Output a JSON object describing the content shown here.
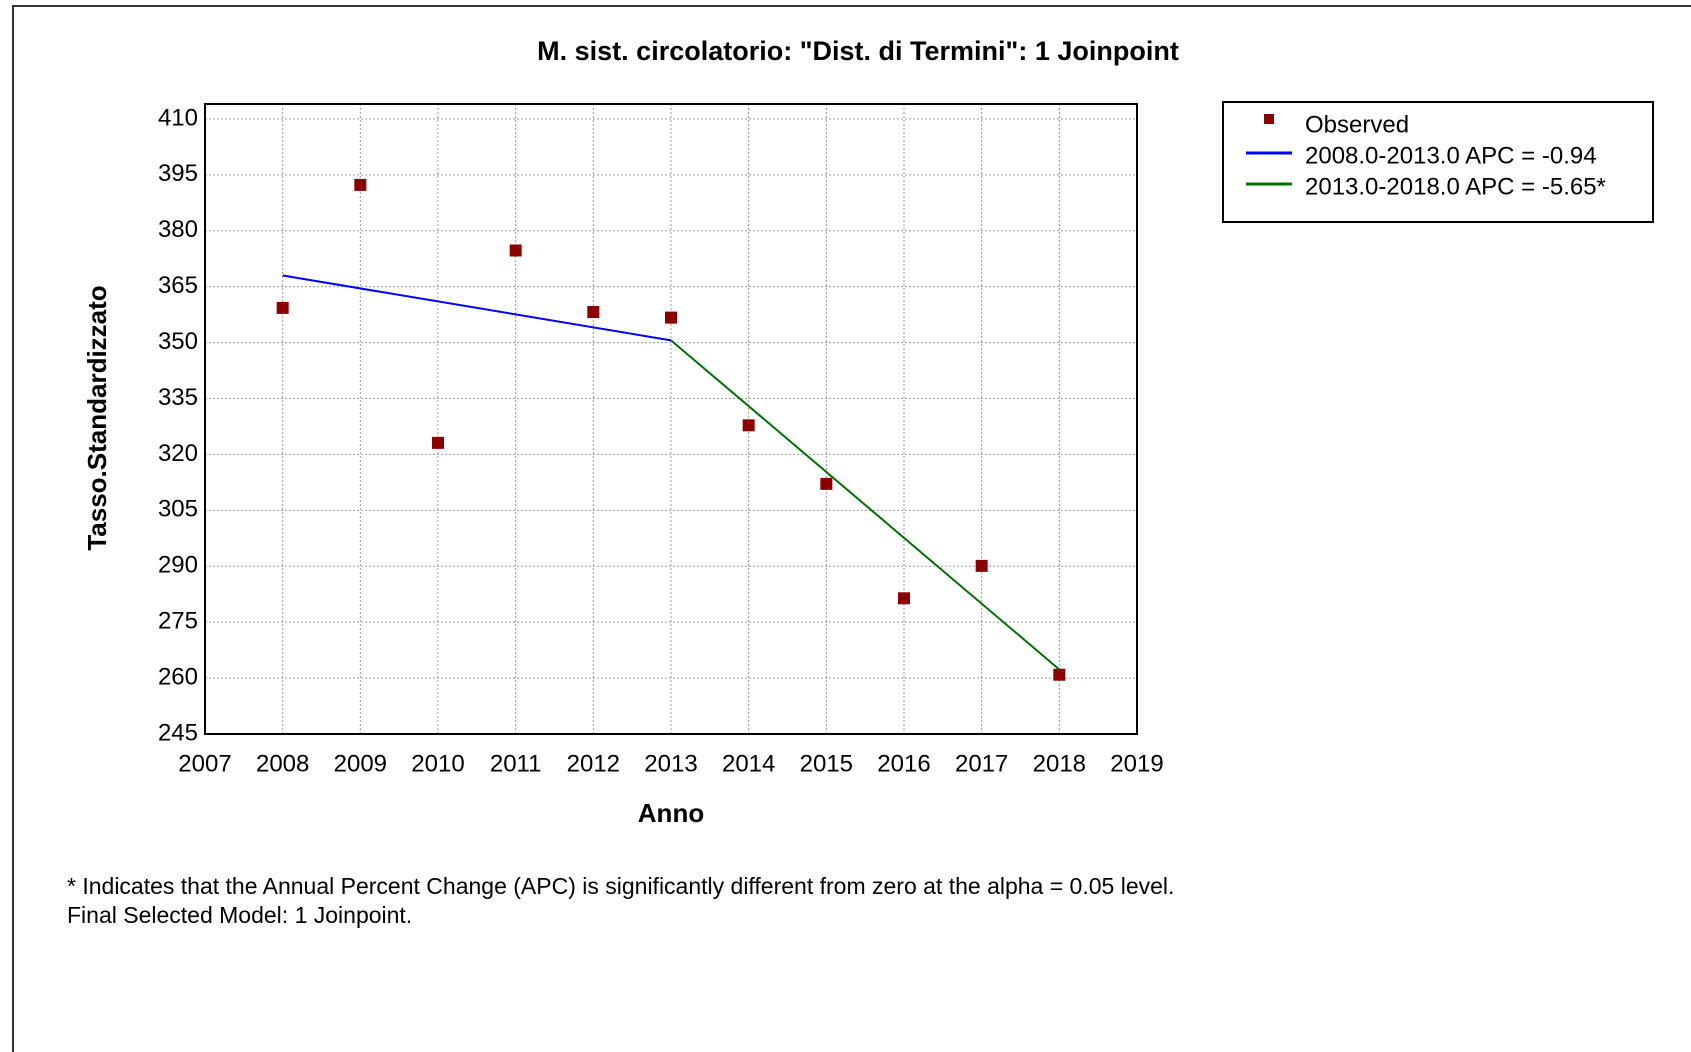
{
  "chart_data": {
    "type": "scatter",
    "title": "M. sist. circolatorio: \"Dist. di Termini\": 1 Joinpoint",
    "xlabel": "Anno",
    "ylabel": "Tasso.Standardizzato",
    "xlim": [
      2007,
      2019
    ],
    "xticks": [
      2007,
      2008,
      2009,
      2010,
      2011,
      2012,
      2013,
      2014,
      2015,
      2016,
      2017,
      2018,
      2019
    ],
    "ylim": [
      245,
      414
    ],
    "yticks": [
      245,
      260,
      275,
      290,
      305,
      320,
      335,
      350,
      365,
      380,
      395,
      410
    ],
    "grid": true,
    "legend": "right",
    "series": [
      {
        "name": "Observed",
        "color": "#8b0000",
        "mode": "markers",
        "x": [
          2008,
          2009,
          2010,
          2011,
          2012,
          2013,
          2014,
          2015,
          2016,
          2017,
          2018
        ],
        "values": [
          359.3,
          392.3,
          323.1,
          374.7,
          358.2,
          356.7,
          327.8,
          312.1,
          281.4,
          290.1,
          260.9
        ]
      },
      {
        "name": "2008.0-2013.0 APC  = -0.94",
        "color": "#0000ff",
        "mode": "line",
        "x": [
          2008,
          2013
        ],
        "values": [
          368.0,
          350.6
        ]
      },
      {
        "name": "2013.0-2018.0 APC  = -5.65*",
        "color": "#007000",
        "mode": "line",
        "x": [
          2013,
          2018
        ],
        "values": [
          350.6,
          262.3
        ]
      }
    ],
    "notes": [
      "* Indicates that the Annual Percent Change (APC) is significantly different from zero at the alpha = 0.05 level.",
      "Final Selected Model: 1 Joinpoint."
    ]
  }
}
